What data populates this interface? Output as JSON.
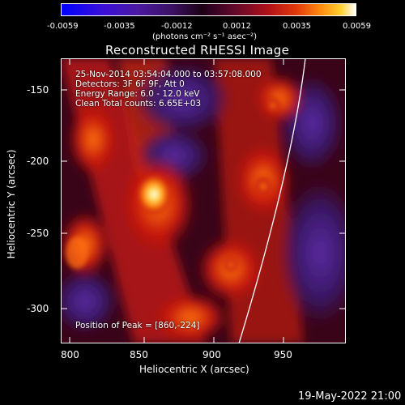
{
  "colorbar": {
    "ticks": [
      "-0.0059",
      "-0.0035",
      "-0.0012",
      "0.0012",
      "0.0035",
      "0.0059"
    ],
    "units": "(photons cm⁻² s⁻¹ asec⁻²)"
  },
  "title": "Reconstructed RHESSI Image",
  "annotations": {
    "time": "25-Nov-2014 03:54:04.000 to 03:57:08.000",
    "detectors": "Detectors: 3F 6F 9F, Att 0",
    "energy": "Energy Range: 6.0 - 12.0 keV",
    "clean": "Clean    Total counts: 6.65E+03",
    "peak": "Position of Peak = [860,-224]"
  },
  "axes": {
    "xlabel": "Heliocentric X (arcsec)",
    "ylabel": "Heliocentric Y (arcsec)",
    "xticks": [
      "800",
      "850",
      "900",
      "950"
    ],
    "yticks": [
      "-150",
      "-200",
      "-250",
      "-300"
    ]
  },
  "footer": "19-May-2022 21:00"
}
